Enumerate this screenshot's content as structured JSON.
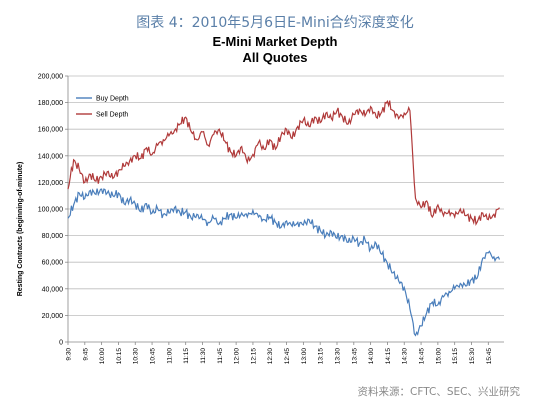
{
  "figure": {
    "caption": "图表 4：2010年5月6日E-Mini合约深度变化",
    "source": "资料来源：CFTC、SEC、兴业研究"
  },
  "chart_data": {
    "type": "line",
    "title": "E-Mini Market Depth",
    "subtitle": "All Quotes",
    "xlabel": "",
    "ylabel": "Resting Contracts (beginning-of-minute)",
    "ylim": [
      0,
      200000
    ],
    "yticks": [
      0,
      20000,
      40000,
      60000,
      80000,
      100000,
      120000,
      140000,
      160000,
      180000,
      200000
    ],
    "ytick_labels": [
      "0",
      "20,000",
      "40,000",
      "60,000",
      "80,000",
      "100,000",
      "120,000",
      "140,000",
      "160,000",
      "180,000",
      "200,000"
    ],
    "x_tick_labels": [
      "9:30",
      "9:45",
      "10:00",
      "10:15",
      "10:30",
      "10:45",
      "11:00",
      "11:15",
      "11:30",
      "11:45",
      "12:00",
      "12:15",
      "12:30",
      "12:45",
      "13:00",
      "13:15",
      "13:30",
      "13:45",
      "14:00",
      "14:15",
      "14:30",
      "14:45",
      "15:00",
      "15:15",
      "15:30",
      "15:45"
    ],
    "grid": true,
    "legend_position": "top-left",
    "series": [
      {
        "name": "Buy Depth",
        "color": "#4a7ebb",
        "points": [
          [
            "9:30",
            93000
          ],
          [
            "9:35",
            103000
          ],
          [
            "9:40",
            112000
          ],
          [
            "9:45",
            108000
          ],
          [
            "9:50",
            114000
          ],
          [
            "9:55",
            111000
          ],
          [
            "10:00",
            115000
          ],
          [
            "10:05",
            112000
          ],
          [
            "10:10",
            110000
          ],
          [
            "10:15",
            112000
          ],
          [
            "10:20",
            104000
          ],
          [
            "10:25",
            107000
          ],
          [
            "10:30",
            104000
          ],
          [
            "10:35",
            98000
          ],
          [
            "10:40",
            104000
          ],
          [
            "10:45",
            97000
          ],
          [
            "10:50",
            100000
          ],
          [
            "10:55",
            96000
          ],
          [
            "11:00",
            97000
          ],
          [
            "11:05",
            101000
          ],
          [
            "11:10",
            97000
          ],
          [
            "11:15",
            98000
          ],
          [
            "11:20",
            93000
          ],
          [
            "11:25",
            96000
          ],
          [
            "11:30",
            92000
          ],
          [
            "11:35",
            90000
          ],
          [
            "11:40",
            93000
          ],
          [
            "11:45",
            89000
          ],
          [
            "11:50",
            93000
          ],
          [
            "11:55",
            96000
          ],
          [
            "12:00",
            93000
          ],
          [
            "12:05",
            97000
          ],
          [
            "12:10",
            94000
          ],
          [
            "12:15",
            99000
          ],
          [
            "12:20",
            94000
          ],
          [
            "12:25",
            92000
          ],
          [
            "12:30",
            94000
          ],
          [
            "12:35",
            90000
          ],
          [
            "12:40",
            86000
          ],
          [
            "12:45",
            91000
          ],
          [
            "12:50",
            87000
          ],
          [
            "12:55",
            90000
          ],
          [
            "13:00",
            88000
          ],
          [
            "13:05",
            92000
          ],
          [
            "13:10",
            87000
          ],
          [
            "13:15",
            84000
          ],
          [
            "13:20",
            80000
          ],
          [
            "13:25",
            83000
          ],
          [
            "13:30",
            78000
          ],
          [
            "13:35",
            80000
          ],
          [
            "13:40",
            75000
          ],
          [
            "13:45",
            78000
          ],
          [
            "13:50",
            74000
          ],
          [
            "13:55",
            77000
          ],
          [
            "14:00",
            70000
          ],
          [
            "14:05",
            74000
          ],
          [
            "14:10",
            66000
          ],
          [
            "14:15",
            59000
          ],
          [
            "14:20",
            52000
          ],
          [
            "14:25",
            46000
          ],
          [
            "14:30",
            41000
          ],
          [
            "14:35",
            25000
          ],
          [
            "14:40",
            5000
          ],
          [
            "14:45",
            12000
          ],
          [
            "14:50",
            22000
          ],
          [
            "14:55",
            30000
          ],
          [
            "15:00",
            28000
          ],
          [
            "15:05",
            34000
          ],
          [
            "15:10",
            38000
          ],
          [
            "15:15",
            40000
          ],
          [
            "15:20",
            44000
          ],
          [
            "15:25",
            42000
          ],
          [
            "15:30",
            47000
          ],
          [
            "15:35",
            48000
          ],
          [
            "15:40",
            63000
          ],
          [
            "15:45",
            67000
          ],
          [
            "15:50",
            64000
          ],
          [
            "15:55",
            62000
          ]
        ]
      },
      {
        "name": "Sell Depth",
        "color": "#b03a3a",
        "points": [
          [
            "9:30",
            115000
          ],
          [
            "9:35",
            137000
          ],
          [
            "9:40",
            130000
          ],
          [
            "9:45",
            120000
          ],
          [
            "9:50",
            126000
          ],
          [
            "9:55",
            121000
          ],
          [
            "10:00",
            124000
          ],
          [
            "10:05",
            128000
          ],
          [
            "10:10",
            123000
          ],
          [
            "10:15",
            129000
          ],
          [
            "10:20",
            132000
          ],
          [
            "10:25",
            136000
          ],
          [
            "10:30",
            140000
          ],
          [
            "10:35",
            138000
          ],
          [
            "10:40",
            146000
          ],
          [
            "10:45",
            141000
          ],
          [
            "10:50",
            148000
          ],
          [
            "10:55",
            152000
          ],
          [
            "11:00",
            155000
          ],
          [
            "11:05",
            159000
          ],
          [
            "11:10",
            164000
          ],
          [
            "11:15",
            169000
          ],
          [
            "11:20",
            158000
          ],
          [
            "11:25",
            152000
          ],
          [
            "11:30",
            158000
          ],
          [
            "11:35",
            148000
          ],
          [
            "11:40",
            156000
          ],
          [
            "11:45",
            160000
          ],
          [
            "11:50",
            151000
          ],
          [
            "11:55",
            143000
          ],
          [
            "12:00",
            140000
          ],
          [
            "12:05",
            147000
          ],
          [
            "12:10",
            135000
          ],
          [
            "12:15",
            141000
          ],
          [
            "12:20",
            150000
          ],
          [
            "12:25",
            145000
          ],
          [
            "12:30",
            152000
          ],
          [
            "12:35",
            145000
          ],
          [
            "12:40",
            155000
          ],
          [
            "12:45",
            160000
          ],
          [
            "12:50",
            153000
          ],
          [
            "12:55",
            162000
          ],
          [
            "13:00",
            167000
          ],
          [
            "13:05",
            162000
          ],
          [
            "13:10",
            169000
          ],
          [
            "13:15",
            165000
          ],
          [
            "13:20",
            172000
          ],
          [
            "13:25",
            168000
          ],
          [
            "13:30",
            174000
          ],
          [
            "13:35",
            169000
          ],
          [
            "13:40",
            164000
          ],
          [
            "13:45",
            171000
          ],
          [
            "13:50",
            175000
          ],
          [
            "13:55",
            170000
          ],
          [
            "14:00",
            177000
          ],
          [
            "14:05",
            169000
          ],
          [
            "14:10",
            173000
          ],
          [
            "14:15",
            181000
          ],
          [
            "14:20",
            174000
          ],
          [
            "14:25",
            168000
          ],
          [
            "14:30",
            172000
          ],
          [
            "14:35",
            174000
          ],
          [
            "14:40",
            108000
          ],
          [
            "14:45",
            101000
          ],
          [
            "14:50",
            106000
          ],
          [
            "14:55",
            94000
          ],
          [
            "15:00",
            103000
          ],
          [
            "15:05",
            95000
          ],
          [
            "15:10",
            99000
          ],
          [
            "15:15",
            94000
          ],
          [
            "15:20",
            100000
          ],
          [
            "15:25",
            95000
          ],
          [
            "15:30",
            93000
          ],
          [
            "15:35",
            90000
          ],
          [
            "15:40",
            97000
          ],
          [
            "15:45",
            92000
          ],
          [
            "15:50",
            96000
          ],
          [
            "15:55",
            101000
          ]
        ]
      }
    ]
  }
}
